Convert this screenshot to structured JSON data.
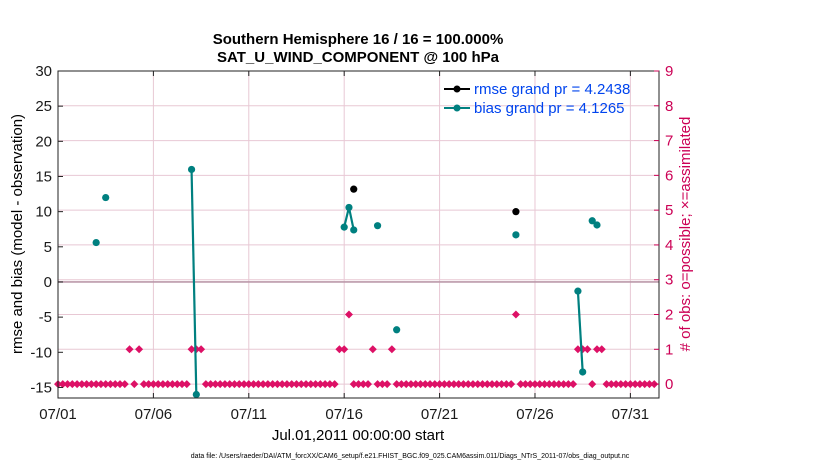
{
  "chart_data": {
    "type": "scatter",
    "title": "Southern Hemisphere 16 / 16 = 100.000%",
    "subtitle": "SAT_U_WIND_COMPONENT @ 100 hPa",
    "xlabel": "Jul.01,2011 00:00:00 start",
    "ylabel": "rmse and bias (model - observation)",
    "ylabel_right": "# of obs: o=possible; ×=assimilated",
    "footer": "data file: /Users/raeder/DAI/ATM_forcXX/CAM6_setup/f.e21.FHIST_BGC.f09_025.CAM6assim.011/Diags_NTrS_2011-07/obs_diag_output.nc",
    "xlim": [
      0,
      31.5
    ],
    "ylim": [
      -16.5,
      30
    ],
    "ylim_right": [
      -0.4,
      9
    ],
    "x_ticks": [
      0,
      5,
      10,
      15,
      20,
      25,
      30
    ],
    "x_tick_labels": [
      "07/01",
      "07/06",
      "07/11",
      "07/16",
      "07/21",
      "07/26",
      "07/31"
    ],
    "y_ticks": [
      -15,
      -10,
      -5,
      0,
      5,
      10,
      15,
      20,
      25,
      30
    ],
    "y_tick_labels": [
      "-15",
      "-10",
      "-5",
      "0",
      "5",
      "10",
      "15",
      "20",
      "25",
      "30"
    ],
    "y_ticks_right": [
      0,
      1,
      2,
      3,
      4,
      5,
      6,
      7,
      8,
      9
    ],
    "y_tick_labels_right": [
      "0",
      "1",
      "2",
      "3",
      "4",
      "5",
      "6",
      "7",
      "8",
      "9"
    ],
    "grid": true,
    "legend_position": "top-right",
    "colors": {
      "rmse": "#000000",
      "bias": "#008080",
      "obs_count": "#dd1166",
      "zero_line": "#bb99aa",
      "grid": "#e8c8d4",
      "legend_text": "#0044ee",
      "right_axis": "#cc0055"
    },
    "series": [
      {
        "name": "rmse grand pr = 4.2438",
        "key": "rmse",
        "segments": [
          [
            [
              15.5,
              13.2
            ]
          ],
          [
            [
              24.0,
              10.0
            ]
          ]
        ]
      },
      {
        "name": "bias grand pr = 4.1265",
        "key": "bias",
        "segments": [
          [
            [
              2.0,
              5.6
            ]
          ],
          [
            [
              2.5,
              12.0
            ]
          ],
          [
            [
              7.0,
              16.0
            ],
            [
              7.25,
              -16.0
            ]
          ],
          [
            [
              15.0,
              7.8
            ],
            [
              15.25,
              10.6
            ],
            [
              15.5,
              7.4
            ]
          ],
          [
            [
              16.75,
              8.0
            ]
          ],
          [
            [
              17.75,
              -6.8
            ]
          ],
          [
            [
              24.0,
              6.7
            ]
          ],
          [
            [
              27.25,
              -1.3
            ],
            [
              27.5,
              -12.8
            ]
          ],
          [
            [
              28.0,
              8.7
            ],
            [
              28.25,
              8.1
            ]
          ]
        ]
      }
    ],
    "obs_counts": {
      "name": "number of observations",
      "x_start": 0,
      "x_step": 0.25,
      "values": [
        0,
        0,
        0,
        0,
        0,
        0,
        0,
        0,
        0,
        0,
        0,
        0,
        0,
        0,
        0,
        1,
        0,
        1,
        0,
        0,
        0,
        0,
        0,
        0,
        0,
        0,
        0,
        0,
        1,
        1,
        1,
        0,
        0,
        0,
        0,
        0,
        0,
        0,
        0,
        0,
        0,
        0,
        0,
        0,
        0,
        0,
        0,
        0,
        0,
        0,
        0,
        0,
        0,
        0,
        0,
        0,
        0,
        0,
        0,
        1,
        1,
        2,
        0,
        0,
        0,
        0,
        1,
        0,
        0,
        0,
        1,
        0,
        0,
        0,
        0,
        0,
        0,
        0,
        0,
        0,
        0,
        0,
        0,
        0,
        0,
        0,
        0,
        0,
        0,
        0,
        0,
        0,
        0,
        0,
        0,
        0,
        2,
        0,
        0,
        0,
        0,
        0,
        0,
        0,
        0,
        0,
        0,
        0,
        0,
        1,
        1,
        1,
        0,
        1,
        1,
        0,
        0,
        0,
        0,
        0,
        0,
        0,
        0,
        0,
        0,
        0
      ]
    }
  }
}
